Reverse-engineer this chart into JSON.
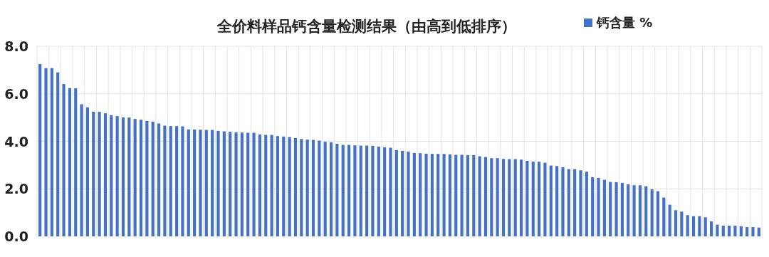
{
  "chart_data": {
    "type": "bar",
    "title": "全价料样品钙含量检测结果（由高到低排序）",
    "categories": [
      null,
      null,
      null,
      null,
      null,
      null,
      null,
      null,
      null,
      null,
      null,
      null,
      null,
      null,
      null,
      null,
      null,
      null,
      null,
      null,
      null,
      null,
      null,
      null,
      null,
      null,
      null,
      null,
      null,
      null,
      null,
      null,
      null,
      null,
      null,
      null,
      null,
      null,
      null,
      null,
      null,
      null,
      null,
      null,
      null,
      null,
      null,
      null,
      null,
      null,
      null,
      null,
      null,
      null,
      null,
      null,
      null,
      null,
      null,
      null,
      null,
      null,
      null,
      null,
      null,
      null,
      null,
      null,
      null,
      null,
      null,
      null,
      null,
      null,
      null,
      null,
      null,
      null,
      null,
      null,
      null,
      null,
      null,
      null,
      null,
      null,
      null,
      null,
      null,
      null,
      null,
      null,
      null,
      null,
      null,
      null,
      null,
      null,
      null,
      null,
      null,
      null,
      null,
      null,
      null,
      null,
      null,
      null,
      null,
      null,
      null,
      null,
      null,
      null,
      null,
      null,
      null,
      null,
      null,
      null,
      null,
      null
    ],
    "series": [
      {
        "name": "钙含量 %",
        "color": "#4472c4",
        "values": [
          7.25,
          7.08,
          7.08,
          6.9,
          6.41,
          6.24,
          6.23,
          5.56,
          5.43,
          5.25,
          5.24,
          5.18,
          5.1,
          5.06,
          5.01,
          5.0,
          4.94,
          4.91,
          4.86,
          4.83,
          4.75,
          4.66,
          4.64,
          4.64,
          4.63,
          4.5,
          4.5,
          4.49,
          4.48,
          4.48,
          4.44,
          4.42,
          4.4,
          4.38,
          4.37,
          4.36,
          4.36,
          4.29,
          4.27,
          4.27,
          4.22,
          4.2,
          4.18,
          4.14,
          4.1,
          4.07,
          4.06,
          4.03,
          3.98,
          3.96,
          3.9,
          3.85,
          3.85,
          3.83,
          3.82,
          3.82,
          3.81,
          3.78,
          3.75,
          3.73,
          3.63,
          3.6,
          3.57,
          3.51,
          3.5,
          3.48,
          3.47,
          3.47,
          3.47,
          3.45,
          3.43,
          3.43,
          3.42,
          3.42,
          3.37,
          3.34,
          3.29,
          3.29,
          3.26,
          3.25,
          3.25,
          3.23,
          3.18,
          3.15,
          3.14,
          3.1,
          2.98,
          2.96,
          2.91,
          2.83,
          2.83,
          2.78,
          2.72,
          2.49,
          2.46,
          2.38,
          2.29,
          2.28,
          2.25,
          2.19,
          2.15,
          2.15,
          2.11,
          1.98,
          1.9,
          1.63,
          1.33,
          1.1,
          1.04,
          0.89,
          0.85,
          0.85,
          0.8,
          0.63,
          0.49,
          0.45,
          0.45,
          0.45,
          0.43,
          0.39,
          0.39,
          0.37
        ]
      }
    ],
    "ylim": [
      0,
      8
    ],
    "yticks": [
      {
        "value": 0,
        "label": "0.0"
      },
      {
        "value": 2,
        "label": "2.0"
      },
      {
        "value": 4,
        "label": "4.0"
      },
      {
        "value": 6,
        "label": "6.0"
      },
      {
        "value": 8,
        "label": "8.0"
      }
    ],
    "grid": true,
    "legend": "top right",
    "tick_labels": "y"
  }
}
